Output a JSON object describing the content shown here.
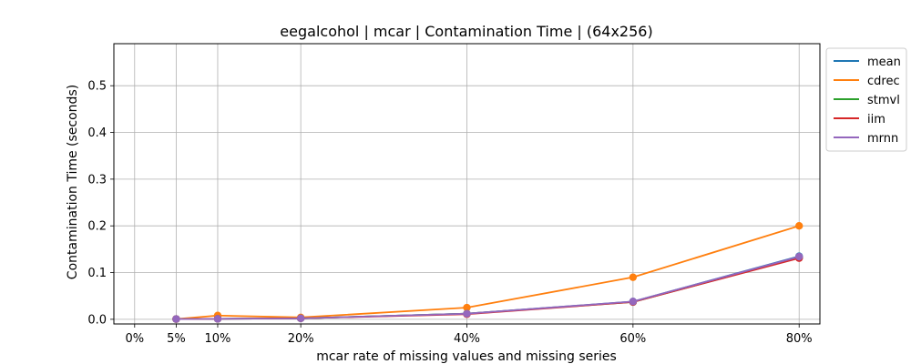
{
  "chart_data": {
    "type": "line",
    "title": "eegalcohol | mcar | Contamination Time | (64x256)",
    "xlabel": "mcar rate of missing values and missing series",
    "ylabel": "Contamination Time (seconds)",
    "x": [
      5,
      10,
      20,
      40,
      60,
      80
    ],
    "xticks": [
      0,
      5,
      10,
      20,
      40,
      60,
      80
    ],
    "xtick_labels": [
      "0%",
      "5%",
      "10%",
      "20%",
      "40%",
      "60%",
      "80%"
    ],
    "xlim": [
      -2.5,
      82.5
    ],
    "ylim": [
      -0.01,
      0.59
    ],
    "yticks": [
      0.0,
      0.1,
      0.2,
      0.3,
      0.4,
      0.5
    ],
    "ytick_labels": [
      "0.0",
      "0.1",
      "0.2",
      "0.3",
      "0.4",
      "0.5"
    ],
    "grid": true,
    "legend_position": "outside-top-right",
    "series": [
      {
        "name": "mean",
        "color": "#1f77b4",
        "values": [
          0.0005,
          0.001,
          0.002,
          0.012,
          0.038,
          0.135
        ]
      },
      {
        "name": "cdrec",
        "color": "#ff7f0e",
        "values": [
          0.0005,
          0.008,
          0.004,
          0.025,
          0.09,
          0.2
        ]
      },
      {
        "name": "stmvl",
        "color": "#2ca02c",
        "values": [
          0.0005,
          0.001,
          0.002,
          0.012,
          0.037,
          0.132
        ]
      },
      {
        "name": "iim",
        "color": "#d62728",
        "values": [
          0.0005,
          0.001,
          0.002,
          0.011,
          0.037,
          0.131
        ]
      },
      {
        "name": "mrnn",
        "color": "#9467bd",
        "values": [
          0.0005,
          0.001,
          0.002,
          0.012,
          0.038,
          0.134
        ]
      }
    ]
  }
}
